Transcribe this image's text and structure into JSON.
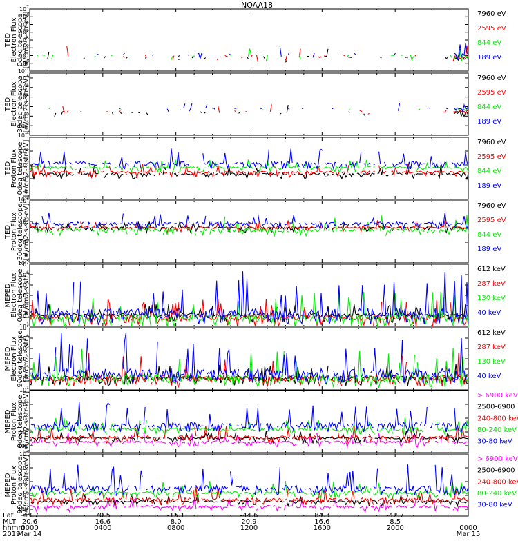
{
  "title": "NOAA18",
  "colors": {
    "black": "#000000",
    "red": "#ff0000",
    "green": "#00ee00",
    "blue": "#0000ff",
    "magenta": "#ff00ff"
  },
  "chart_data": [
    {
      "type": "line",
      "ylabel_lines": [
        "TED",
        "Electron Flux",
        "0deg telescope",
        "[#/cm2-s-str-eV]"
      ],
      "ytick_exponents": [
        -1,
        0,
        1,
        2,
        3,
        4,
        5,
        6,
        7
      ],
      "log_range": [
        -1,
        7
      ],
      "density": 0.25,
      "series": [
        {
          "name": "7960 eV",
          "color": "#000000",
          "base": 0.5,
          "peak": 2.2
        },
        {
          "name": "2595 eV",
          "color": "#ff0000",
          "base": 0.7,
          "peak": 2.4
        },
        {
          "name": "844 eV",
          "color": "#00ee00",
          "base": 0.8,
          "peak": 2.2
        },
        {
          "name": "189 eV",
          "color": "#0000ff",
          "base": 1.0,
          "peak": 2.4
        }
      ]
    },
    {
      "type": "line",
      "ylabel_lines": [
        "TED",
        "Electron Flux",
        "30deg telescope",
        "[#/cm2-s-str-eV]"
      ],
      "ytick_exponents": [
        -4,
        -2,
        0,
        2,
        4,
        6,
        8
      ],
      "log_range": [
        -4,
        9
      ],
      "density": 0.22,
      "series": [
        {
          "name": "7960 eV",
          "color": "#000000",
          "base": 0.5,
          "peak": 2.5
        },
        {
          "name": "2595 eV",
          "color": "#ff0000",
          "base": 0.8,
          "peak": 2.5
        },
        {
          "name": "844 eV",
          "color": "#00ee00",
          "base": 1.2,
          "peak": 2.5
        },
        {
          "name": "189 eV",
          "color": "#0000ff",
          "base": 1.5,
          "peak": 2.5
        }
      ]
    },
    {
      "type": "line",
      "ylabel_lines": [
        "TED",
        "Proton Flux",
        "0deg telescope",
        "[#/cm2-s-str-eV]"
      ],
      "ytick_exponents": [
        -3,
        0,
        2,
        4
      ],
      "log_range": [
        -3,
        6
      ],
      "density": 0.85,
      "series": [
        {
          "name": "7960 eV",
          "color": "#000000",
          "base": 0.5,
          "peak": 1.8
        },
        {
          "name": "2595 eV",
          "color": "#ff0000",
          "base": 0.8,
          "peak": 2.0
        },
        {
          "name": "844 eV",
          "color": "#00ee00",
          "base": 1.5,
          "peak": 2.6
        },
        {
          "name": "189 eV",
          "color": "#0000ff",
          "base": 2.0,
          "peak": 4.0
        }
      ]
    },
    {
      "type": "line",
      "ylabel_lines": [
        "TED",
        "Proton Flux",
        "30deg telescope",
        "[#/cm2-s-str-eV]"
      ],
      "ytick_exponents": [
        -3,
        0,
        3,
        6
      ],
      "log_range": [
        -3,
        6
      ],
      "density": 0.85,
      "series": [
        {
          "name": "7960 eV",
          "color": "#000000",
          "base": 2.0,
          "peak": 3.0
        },
        {
          "name": "2595 eV",
          "color": "#ff0000",
          "base": 2.0,
          "peak": 3.0
        },
        {
          "name": "844 eV",
          "color": "#00ee00",
          "base": 1.5,
          "peak": 3.6
        },
        {
          "name": "189 eV",
          "color": "#0000ff",
          "base": 2.5,
          "peak": 4.2
        }
      ]
    },
    {
      "type": "line",
      "ylabel_lines": [
        "MEPED",
        "Electron Flux",
        "0deg telescope",
        "[#/cm2-s-str]"
      ],
      "ytick_exponents": [
        1,
        2,
        3,
        4,
        5,
        6,
        7
      ],
      "log_range": [
        1,
        7
      ],
      "density": 0.95,
      "series": [
        {
          "name": "612 keV",
          "color": "#000000",
          "base": 2.0,
          "peak": 3.0
        },
        {
          "name": "287 keV",
          "color": "#ff0000",
          "base": 1.6,
          "peak": 3.6
        },
        {
          "name": "130 keV",
          "color": "#00ee00",
          "base": 1.5,
          "peak": 4.0
        },
        {
          "name": "40 keV",
          "color": "#0000ff",
          "base": 1.8,
          "peak": 5.6
        }
      ]
    },
    {
      "type": "line",
      "ylabel_lines": [
        "MEPED",
        "Electron Flux",
        "90deg telescope",
        "[#/cm2-s-str]"
      ],
      "ytick_exponents": [
        1,
        2,
        3,
        4,
        5,
        6,
        7
      ],
      "log_range": [
        1,
        7
      ],
      "density": 0.95,
      "series": [
        {
          "name": "612 keV",
          "color": "#000000",
          "base": 2.0,
          "peak": 3.4
        },
        {
          "name": "287 keV",
          "color": "#ff0000",
          "base": 1.8,
          "peak": 4.2
        },
        {
          "name": "130 keV",
          "color": "#00ee00",
          "base": 1.8,
          "peak": 4.6
        },
        {
          "name": "40 keV",
          "color": "#0000ff",
          "base": 2.2,
          "peak": 5.8
        }
      ]
    },
    {
      "type": "line",
      "ylabel_lines": [
        "MEPED",
        "Proton Flux",
        "0deg telescope",
        "[#/cm2-s-str-keV]"
      ],
      "ytick_exponents": [
        -2,
        0,
        2,
        4
      ],
      "log_range": [
        -3,
        6
      ],
      "density": 0.9,
      "series": [
        {
          "name": "> 6900 keV",
          "color": "#ff00ff",
          "base": -1.6,
          "peak": -0.4
        },
        {
          "name": "2500-6900",
          "color": "#000000",
          "base": -1.0,
          "peak": 0.0
        },
        {
          "name": "240-800 keV",
          "color": "#ff0000",
          "base": -1.0,
          "peak": 0.8
        },
        {
          "name": "80-240 keV",
          "color": "#00ee00",
          "base": 0.2,
          "peak": 1.8
        },
        {
          "name": "30-80 keV",
          "color": "#0000ff",
          "base": 0.6,
          "peak": 3.8
        }
      ]
    },
    {
      "type": "line",
      "ylabel_lines": [
        "MEPED",
        "Proton Flux",
        "90deg telescope",
        "[#/cm2-s-str-keV]"
      ],
      "ytick_exponents": [
        -2,
        0,
        2,
        4,
        6
      ],
      "log_range": [
        -3,
        6
      ],
      "density": 0.9,
      "series": [
        {
          "name": "> 6900 keV",
          "color": "#ff00ff",
          "base": -1.8,
          "peak": -0.4
        },
        {
          "name": "2500-6900",
          "color": "#000000",
          "base": -1.0,
          "peak": 0.0
        },
        {
          "name": "240-800 keV",
          "color": "#ff0000",
          "base": -0.8,
          "peak": 1.0
        },
        {
          "name": "80-240 keV",
          "color": "#00ee00",
          "base": 0.2,
          "peak": 1.8
        },
        {
          "name": "30-80 keV",
          "color": "#0000ff",
          "base": 0.6,
          "peak": 4.0
        }
      ]
    }
  ],
  "x_axis": {
    "row_labels": [
      "Lat",
      "MLT",
      "hhmm",
      "2019"
    ],
    "ticks": [
      {
        "hour": 0,
        "lat": "-43.7",
        "mlt": "20.6",
        "hhmm": "0000",
        "date": "Mar 14"
      },
      {
        "hour": 4,
        "lat": "70.5",
        "mlt": "16.6",
        "hhmm": "0400",
        "date": ""
      },
      {
        "hour": 8,
        "lat": "-15.1",
        "mlt": "8.0",
        "hhmm": "0800",
        "date": ""
      },
      {
        "hour": 12,
        "lat": "-44.6",
        "mlt": "20.9",
        "hhmm": "1200",
        "date": ""
      },
      {
        "hour": 16,
        "lat": "84.3",
        "mlt": "16.6",
        "hhmm": "1600",
        "date": ""
      },
      {
        "hour": 20,
        "lat": "-42.7",
        "mlt": "8.5",
        "hhmm": "2000",
        "date": ""
      },
      {
        "hour": 24,
        "lat": "",
        "mlt": "",
        "hhmm": "0000",
        "date": "Mar 15"
      }
    ]
  }
}
